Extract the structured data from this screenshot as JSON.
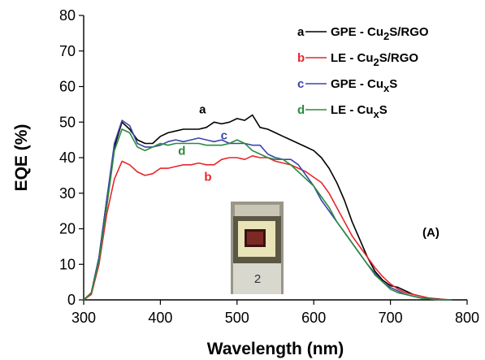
{
  "chart_data": {
    "type": "line",
    "xlabel": "Wavelength (nm)",
    "ylabel": "EQE (%)",
    "xlim": [
      300,
      800
    ],
    "ylim": [
      0,
      80
    ],
    "xticks": [
      300,
      400,
      500,
      600,
      700,
      800
    ],
    "yticks": [
      0,
      10,
      20,
      30,
      40,
      50,
      60,
      70,
      80
    ],
    "panel_label": "(A)",
    "legend_position": "top-right",
    "series": [
      {
        "letter": "a",
        "name": "GPE - Cu2S/RGO",
        "name_main": "GPE - Cu",
        "name_sub": "2",
        "name_rest": "S/RGO",
        "color": "#000000",
        "label_at": [
          455,
          52.5
        ],
        "x": [
          300,
          310,
          320,
          330,
          340,
          350,
          360,
          370,
          380,
          390,
          400,
          410,
          420,
          430,
          440,
          450,
          460,
          470,
          480,
          490,
          500,
          510,
          520,
          530,
          540,
          550,
          560,
          570,
          580,
          590,
          600,
          610,
          620,
          630,
          640,
          650,
          660,
          670,
          680,
          690,
          700,
          710,
          720,
          730,
          740,
          750,
          760,
          770,
          780
        ],
        "y": [
          0,
          2,
          12,
          28,
          43,
          50,
          48,
          45,
          44,
          44,
          46,
          47,
          47.5,
          48,
          48,
          48,
          48.5,
          50,
          49.5,
          50,
          51,
          50.5,
          52,
          48.5,
          48,
          47,
          46,
          45,
          44,
          43,
          42,
          40,
          37,
          33,
          28,
          22,
          17,
          12,
          8,
          5.5,
          4,
          3.5,
          2.5,
          1.5,
          1,
          0.5,
          0.3,
          0.1,
          0
        ]
      },
      {
        "letter": "b",
        "name": "LE - Cu2S/RGO",
        "name_main": "LE - Cu",
        "name_sub": "2",
        "name_rest": "S/RGO",
        "color": "#e8262a",
        "label_at": [
          462,
          33.5
        ],
        "x": [
          300,
          310,
          320,
          330,
          340,
          350,
          360,
          370,
          380,
          390,
          400,
          410,
          420,
          430,
          440,
          450,
          460,
          470,
          480,
          490,
          500,
          510,
          520,
          530,
          540,
          550,
          560,
          570,
          580,
          590,
          600,
          610,
          620,
          630,
          640,
          650,
          660,
          670,
          680,
          690,
          700,
          710,
          720,
          730,
          740,
          750,
          760,
          770,
          780
        ],
        "y": [
          0,
          1.5,
          10,
          24,
          34,
          39,
          38,
          36,
          35,
          35.5,
          37,
          37,
          37.5,
          38,
          38,
          38.5,
          38,
          38,
          39.5,
          40,
          40,
          39.5,
          40.5,
          40,
          40,
          39,
          38.5,
          38,
          37,
          36,
          34.5,
          33,
          30,
          26,
          22,
          18,
          15,
          12,
          9,
          6.5,
          4.5,
          3,
          2,
          1.5,
          1,
          0.5,
          0.2,
          0.1,
          0
        ]
      },
      {
        "letter": "c",
        "name": "GPE - CuxS",
        "name_main": "GPE - Cu",
        "name_sub": "x",
        "name_rest": "S",
        "color": "#3b45a8",
        "label_at": [
          483,
          45.2
        ],
        "x": [
          300,
          310,
          320,
          330,
          340,
          350,
          360,
          370,
          380,
          390,
          400,
          410,
          420,
          430,
          440,
          450,
          460,
          470,
          480,
          490,
          500,
          510,
          520,
          530,
          540,
          550,
          560,
          570,
          580,
          590,
          600,
          610,
          620,
          630,
          640,
          650,
          660,
          670,
          680,
          690,
          700,
          710,
          720,
          730,
          740,
          750,
          760,
          770,
          780
        ],
        "y": [
          0,
          2,
          12,
          28,
          44,
          50.5,
          49,
          44,
          43,
          43,
          43.5,
          44.5,
          45,
          44.5,
          45,
          45.5,
          45,
          44.5,
          45,
          44,
          44,
          44,
          43.5,
          43.5,
          41,
          40,
          39.5,
          39.5,
          38,
          35,
          32,
          28,
          25,
          22,
          19,
          16,
          13,
          10,
          7.5,
          5,
          3.5,
          2.5,
          1.5,
          1,
          0.5,
          0.3,
          0.1,
          0,
          0
        ]
      },
      {
        "letter": "d",
        "name": "LE - CuxS",
        "name_main": "LE - Cu",
        "name_sub": "x",
        "name_rest": "S",
        "color": "#2b8a3e",
        "label_at": [
          428,
          40.8
        ],
        "x": [
          300,
          310,
          320,
          330,
          340,
          350,
          360,
          370,
          380,
          390,
          400,
          410,
          420,
          430,
          440,
          450,
          460,
          470,
          480,
          490,
          500,
          510,
          520,
          530,
          540,
          550,
          560,
          570,
          580,
          590,
          600,
          610,
          620,
          630,
          640,
          650,
          660,
          670,
          680,
          690,
          700,
          710,
          720,
          730,
          740,
          750,
          760,
          770,
          780
        ],
        "y": [
          0,
          2,
          11,
          26,
          42,
          48,
          47,
          43,
          42,
          43,
          44,
          43.5,
          44,
          44,
          44,
          44,
          43.5,
          43.5,
          43.5,
          44,
          45,
          44,
          42,
          41,
          40,
          39.5,
          39.5,
          38,
          36,
          34,
          32,
          29,
          26,
          22,
          19,
          16,
          13,
          10,
          7,
          5,
          3,
          2,
          1.5,
          1,
          0.5,
          0.3,
          0.1,
          0,
          0
        ]
      }
    ]
  },
  "inset": {
    "image_name": "device-photo",
    "annotation": "2"
  }
}
